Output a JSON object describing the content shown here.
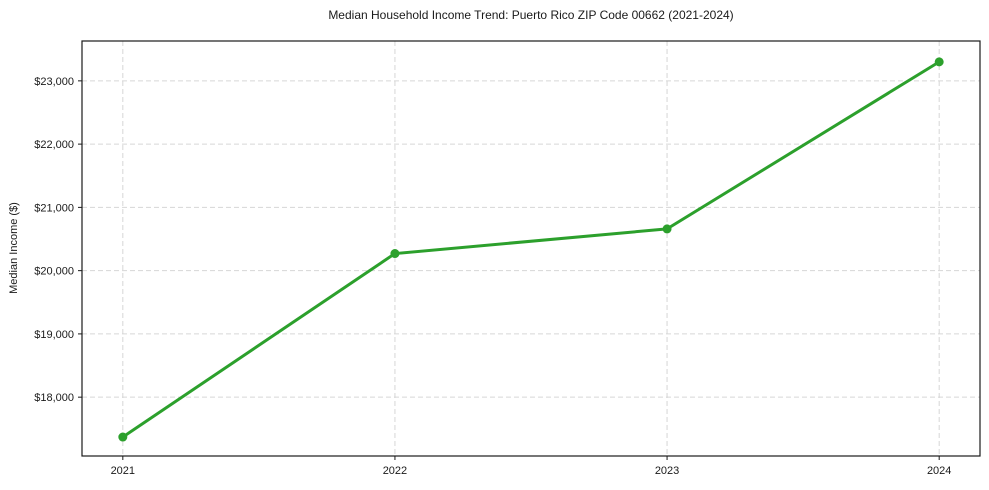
{
  "figure": {
    "background": "#ffffff",
    "plot_background": "#ffffff",
    "frame_color": "#1a1a1a"
  },
  "chart_data": {
    "type": "line",
    "title": "Median Household Income Trend: Puerto Rico ZIP Code 00662 (2021-2024)",
    "xlabel": "",
    "ylabel": "Median Income ($)",
    "x": [
      2021,
      2022,
      2023,
      2024
    ],
    "series": [
      {
        "name": "Median Household Income",
        "values": [
          17370,
          20270,
          20660,
          23300
        ],
        "color": "#2ca02c",
        "marker": "circle",
        "marker_diameter": 9,
        "line_width": 3
      }
    ],
    "xlim": [
      2020.85,
      2024.15
    ],
    "ylim": [
      17070,
      23630
    ],
    "xticks": [
      {
        "value": 2021,
        "label": "2021"
      },
      {
        "value": 2022,
        "label": "2022"
      },
      {
        "value": 2023,
        "label": "2023"
      },
      {
        "value": 2024,
        "label": "2024"
      }
    ],
    "yticks": [
      {
        "value": 18000,
        "label": "$18,000"
      },
      {
        "value": 19000,
        "label": "$19,000"
      },
      {
        "value": 20000,
        "label": "$20,000"
      },
      {
        "value": 21000,
        "label": "$21,000"
      },
      {
        "value": 22000,
        "label": "$22,000"
      },
      {
        "value": 23000,
        "label": "$23,000"
      }
    ],
    "grid": true,
    "grid_color": "#d6d6d6",
    "grid_dash": "5 3",
    "legend_position": "none"
  }
}
